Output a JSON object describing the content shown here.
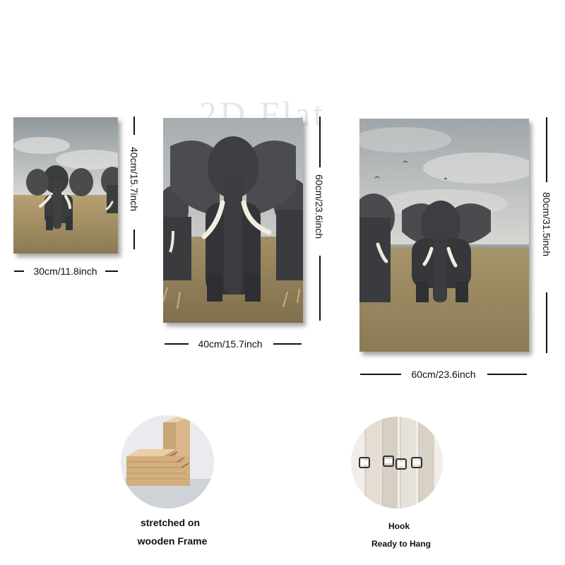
{
  "watermark": "2D Flat",
  "sizes": {
    "small": {
      "width": "30cm/11.8inch",
      "height": "40cm/15.7inch"
    },
    "medium": {
      "width": "40cm/15.7inch",
      "height": "60cm/23.6inch"
    },
    "large": {
      "width": "60cm/23.6inch",
      "height": "80cm/31.5inch"
    }
  },
  "features": {
    "frame": {
      "line1": "stretched on",
      "line2": "wooden Frame"
    },
    "hook": {
      "line1": "Hook",
      "line2": "Ready to Hang"
    }
  },
  "colors": {
    "sky": "#b9bcbf",
    "grass": "#a08d63",
    "elephant": "#3d3e40",
    "tusk": "#eeeadd",
    "wood": "#d9b78b"
  }
}
